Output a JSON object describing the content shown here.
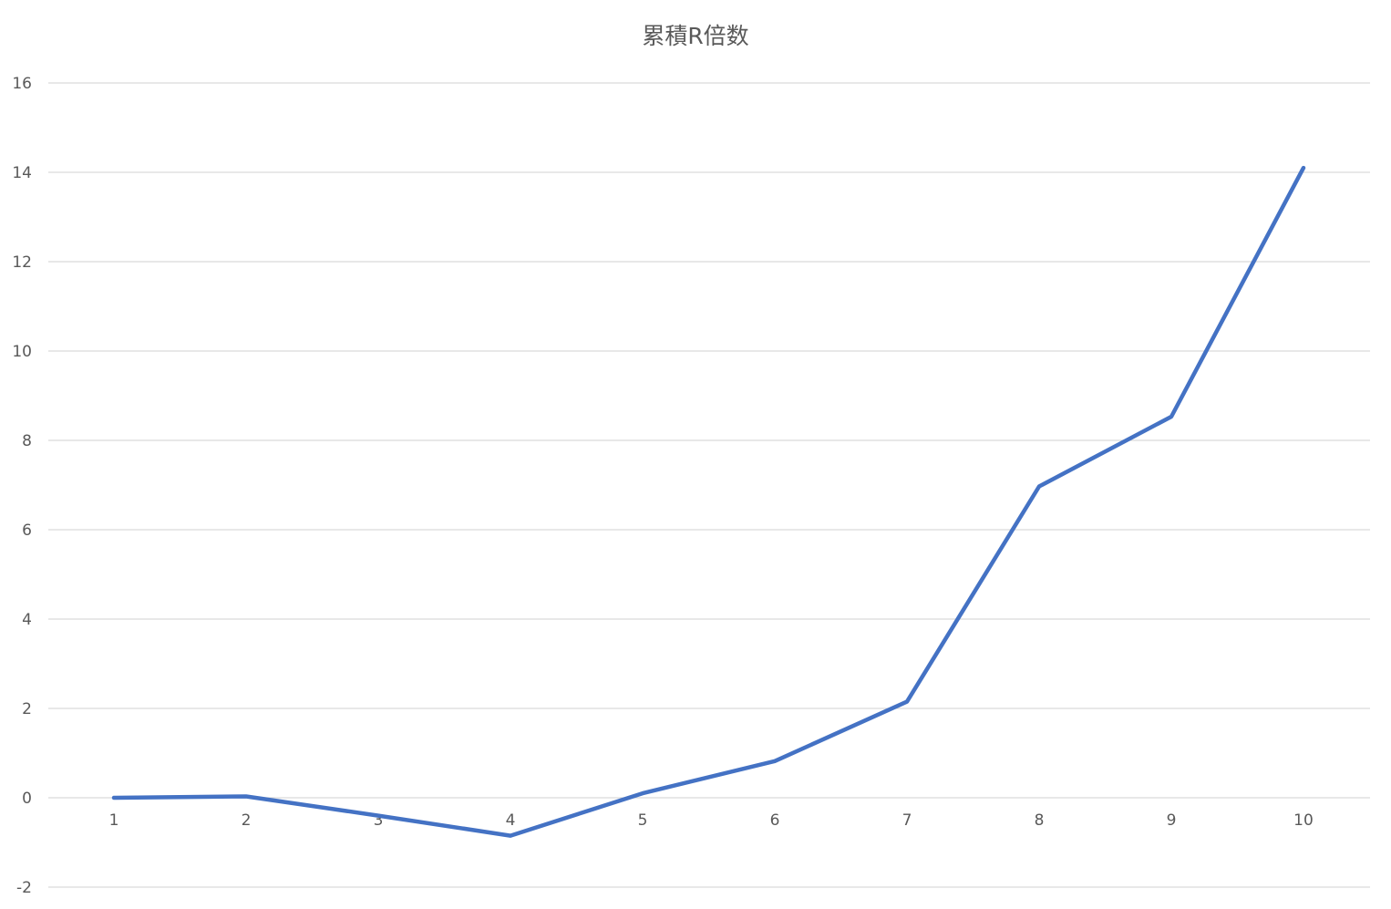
{
  "chart_data": {
    "type": "line",
    "title": "累積R倍数",
    "xlabel": "",
    "ylabel": "",
    "categories": [
      "1",
      "2",
      "3",
      "4",
      "5",
      "6",
      "7",
      "8",
      "9",
      "10"
    ],
    "series": [
      {
        "values": [
          0.0,
          0.03,
          -0.4,
          -0.85,
          0.1,
          0.82,
          2.15,
          6.97,
          8.53,
          14.1
        ],
        "color": "#4472c4"
      }
    ],
    "ylim": [
      -2,
      16
    ],
    "yticks": [
      -2,
      0,
      2,
      4,
      6,
      8,
      10,
      12,
      14,
      16
    ],
    "grid": true,
    "legend": "none"
  }
}
